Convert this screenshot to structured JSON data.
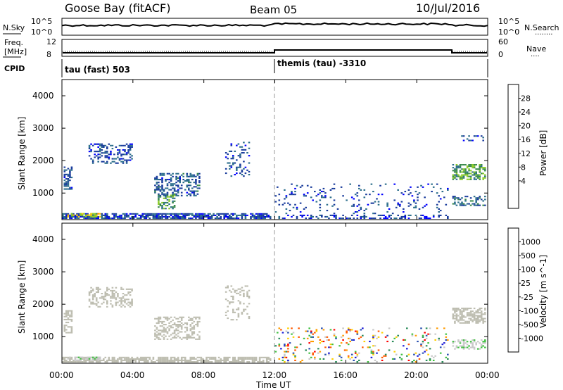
{
  "header": {
    "site": "Goose Bay (fitACF)",
    "beam": "Beam 05",
    "date": "10/Jul/2016"
  },
  "nsky_panel": {
    "left_label": "N.Sky",
    "left_ticks": [
      "10^5",
      "10^0"
    ],
    "right_ticks": [
      "10^5",
      "10^0"
    ],
    "right_label": "N.Search",
    "right_dots": "........"
  },
  "freq_panel": {
    "left_label_1": "Freq.",
    "left_label_2": "[MHz]",
    "left_ticks": [
      "12",
      "8"
    ],
    "right_ticks": [
      "60",
      "0"
    ],
    "right_label": "Nave",
    "right_dots": "...."
  },
  "cpid": {
    "label": "CPID",
    "segments": [
      "tau (fast) 503",
      "themis (tau) -3310"
    ]
  },
  "range_ticks": [
    "4000",
    "3000",
    "2000",
    "1000"
  ],
  "range_axis_label": "Slant Range [km]",
  "time_ticks": [
    "00:00",
    "04:00",
    "08:00",
    "12:00",
    "16:00",
    "20:00",
    "00:00"
  ],
  "time_axis_label": "Time UT",
  "colors": {
    "power_scale": [
      "#0000ff",
      "#1a3c9c",
      "#2c6e8c",
      "#3a8a4c",
      "#8ccc28",
      "#ffcc00",
      "#ff8800",
      "#ff5500",
      "#ff2000"
    ],
    "velocity_scale": [
      "#ff0000",
      "#ff5a00",
      "#ff9c00",
      "#ffd000",
      "#c8c8c8",
      "#40c040",
      "#2a8c5a",
      "#2a50b0",
      "#1c1cd8"
    ],
    "ground_scatter": "#bdbdb0"
  },
  "chart_data": [
    {
      "type": "heatmap",
      "title": "Power",
      "xlabel": "Time UT",
      "ylabel": "Slant Range [km]",
      "xlim": [
        "00:00",
        "24:00"
      ],
      "ylim": [
        180,
        4500
      ],
      "colorbar": {
        "label": "Power [dB]",
        "ticks": [
          "28",
          "24",
          "20",
          "16",
          "12",
          "8",
          "4"
        ],
        "range": [
          0,
          32
        ]
      },
      "regions": [
        {
          "t0": 0.0,
          "t1": 11.8,
          "r0": 200,
          "r1": 360,
          "value": 6,
          "density": 0.75
        },
        {
          "t0": 0.3,
          "t1": 2.2,
          "r0": 250,
          "r1": 380,
          "value": 18,
          "density": 0.5
        },
        {
          "t0": 12.0,
          "t1": 21.8,
          "r0": 200,
          "r1": 330,
          "value": 5,
          "density": 0.35
        },
        {
          "t0": 0.1,
          "t1": 0.6,
          "r0": 1100,
          "r1": 1800,
          "value": 7,
          "density": 0.45
        },
        {
          "t0": 1.5,
          "t1": 4.0,
          "r0": 1900,
          "r1": 2550,
          "value": 6,
          "density": 0.35
        },
        {
          "t0": 5.2,
          "t1": 7.8,
          "r0": 900,
          "r1": 1600,
          "value": 7,
          "density": 0.45
        },
        {
          "t0": 5.4,
          "t1": 6.4,
          "r0": 500,
          "r1": 950,
          "value": 12,
          "density": 0.4
        },
        {
          "t0": 9.2,
          "t1": 10.6,
          "r0": 1500,
          "r1": 2600,
          "value": 6,
          "density": 0.2
        },
        {
          "t0": 12.0,
          "t1": 21.8,
          "r0": 350,
          "r1": 1300,
          "value": 6,
          "density": 0.08
        },
        {
          "t0": 22.0,
          "t1": 23.9,
          "r0": 1400,
          "r1": 1900,
          "value": 13,
          "density": 0.6
        },
        {
          "t0": 22.0,
          "t1": 23.9,
          "r0": 600,
          "r1": 900,
          "value": 8,
          "density": 0.45
        },
        {
          "t0": 22.5,
          "t1": 23.9,
          "r0": 2600,
          "r1": 2800,
          "value": 6,
          "density": 0.3
        }
      ]
    },
    {
      "type": "heatmap",
      "title": "Velocity",
      "xlabel": "Time UT",
      "ylabel": "Slant Range [km]",
      "xlim": [
        "00:00",
        "24:00"
      ],
      "ylim": [
        180,
        4500
      ],
      "colorbar": {
        "label": "Velocity [m s^-1]",
        "ticks": [
          "1000",
          "500",
          "100",
          "25",
          "-25",
          "-100",
          "-500",
          "-1000"
        ],
        "range": [
          -1200,
          1200
        ]
      },
      "regions": [
        {
          "t0": 0.0,
          "t1": 11.8,
          "r0": 200,
          "r1": 360,
          "value": 0,
          "density": 0.75,
          "ground": true
        },
        {
          "t0": 0.3,
          "t1": 2.2,
          "r0": 250,
          "r1": 380,
          "value": 60,
          "density": 0.5
        },
        {
          "t0": 0.1,
          "t1": 0.6,
          "r0": 1100,
          "r1": 1800,
          "value": 0,
          "density": 0.45,
          "ground": true
        },
        {
          "t0": 1.5,
          "t1": 4.0,
          "r0": 1900,
          "r1": 2550,
          "value": 0,
          "density": 0.35,
          "ground": true
        },
        {
          "t0": 5.2,
          "t1": 7.8,
          "r0": 900,
          "r1": 1600,
          "value": 0,
          "density": 0.45,
          "ground": true
        },
        {
          "t0": 9.2,
          "t1": 10.6,
          "r0": 1500,
          "r1": 2600,
          "value": 0,
          "density": 0.2,
          "ground": true
        },
        {
          "t0": 12.0,
          "t1": 21.8,
          "r0": 200,
          "r1": 1300,
          "value": -200,
          "density": 0.12,
          "mixed": true
        },
        {
          "t0": 22.0,
          "t1": 23.9,
          "r0": 1400,
          "r1": 1900,
          "value": 0,
          "density": 0.6,
          "ground": true
        },
        {
          "t0": 22.0,
          "t1": 23.9,
          "r0": 600,
          "r1": 900,
          "value": 80,
          "density": 0.45
        }
      ]
    }
  ]
}
